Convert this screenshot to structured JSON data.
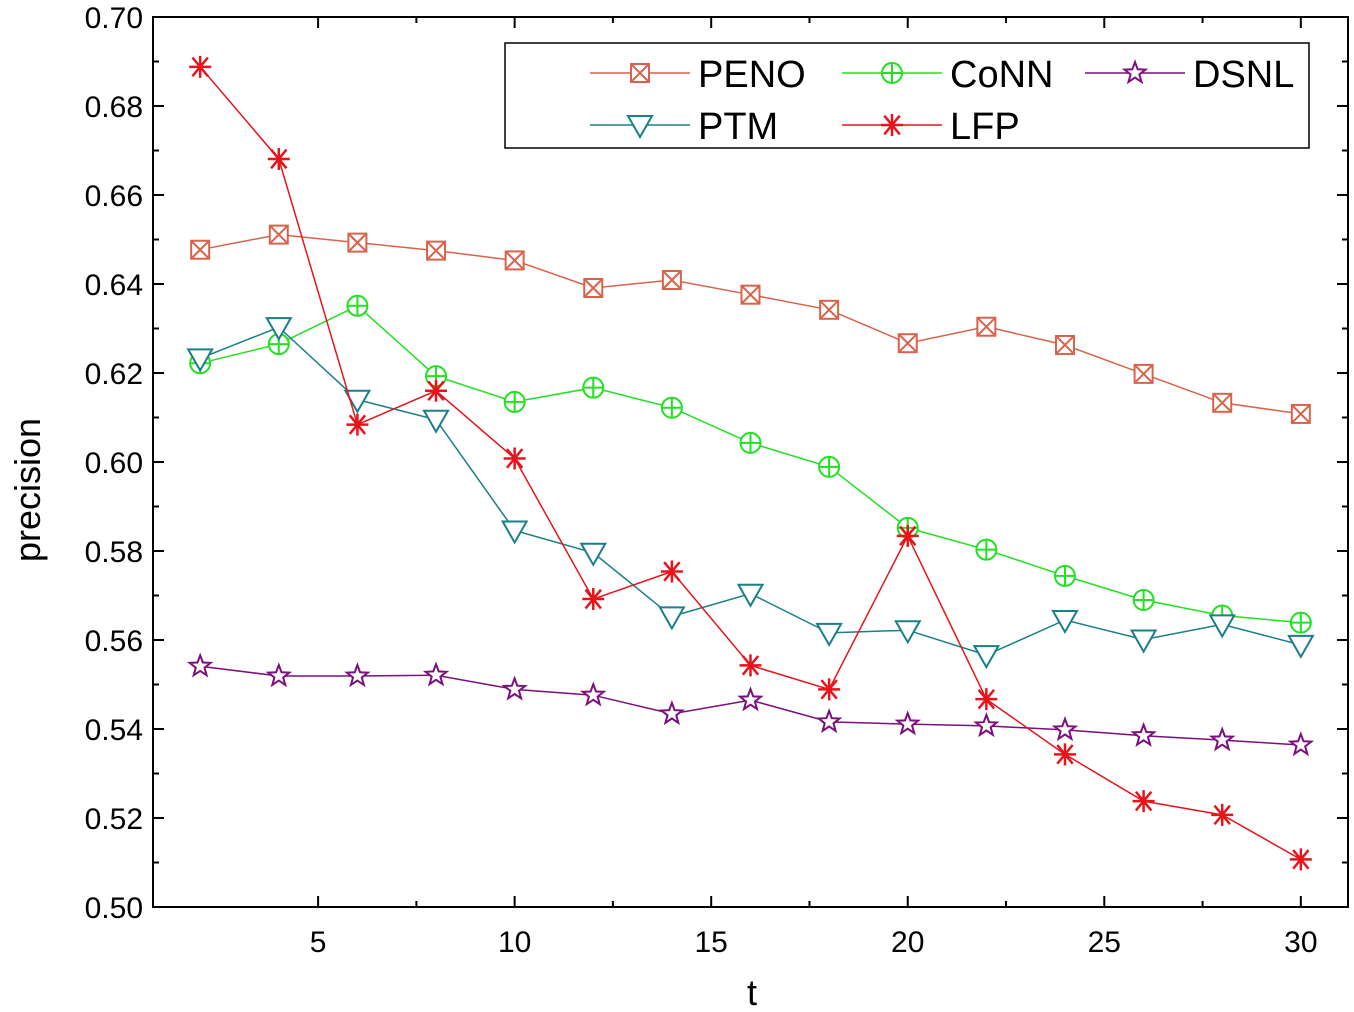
{
  "chart_data": {
    "type": "line",
    "title": "",
    "xlabel": "t",
    "ylabel": "precision",
    "xlim": [
      0.8,
      31.2
    ],
    "ylim": [
      0.5,
      0.7
    ],
    "xticks": [
      5,
      10,
      15,
      20,
      25,
      30
    ],
    "xticks_minor": [
      7.5,
      12.5,
      17.5,
      22.5,
      27.5
    ],
    "yticks": [
      0.5,
      0.52,
      0.54,
      0.56,
      0.58,
      0.6,
      0.62,
      0.64,
      0.66,
      0.68,
      0.7
    ],
    "yticks_minor": [
      0.51,
      0.53,
      0.55,
      0.57,
      0.59,
      0.61,
      0.63,
      0.65,
      0.67,
      0.69
    ],
    "xtick_labels": [
      "5",
      "10",
      "15",
      "20",
      "25",
      "30"
    ],
    "ytick_labels": [
      "0.50",
      "0.52",
      "0.54",
      "0.56",
      "0.58",
      "0.60",
      "0.62",
      "0.64",
      "0.66",
      "0.68",
      "0.70"
    ],
    "grid": false,
    "legend_position": "top-right",
    "x": [
      2,
      4,
      6,
      8,
      10,
      12,
      14,
      16,
      18,
      20,
      22,
      24,
      26,
      28,
      30
    ],
    "series": [
      {
        "name": "PENO",
        "color": "#d9634a",
        "marker": "square-x",
        "values": [
          0.6477,
          0.6511,
          0.6493,
          0.6475,
          0.6453,
          0.6391,
          0.6409,
          0.6376,
          0.6342,
          0.6267,
          0.6304,
          0.6263,
          0.6198,
          0.6133,
          0.6108
        ]
      },
      {
        "name": "CoNN",
        "color": "#22e022",
        "marker": "circle-plus",
        "values": [
          0.6222,
          0.6265,
          0.6351,
          0.6193,
          0.6135,
          0.6167,
          0.6122,
          0.6043,
          0.5989,
          0.5852,
          0.5803,
          0.5744,
          0.569,
          0.5655,
          0.5639
        ]
      },
      {
        "name": "DSNL",
        "color": "#7b0f7b",
        "marker": "star",
        "values": [
          0.5541,
          0.5519,
          0.5519,
          0.5521,
          0.5489,
          0.5476,
          0.5434,
          0.5465,
          0.5416,
          0.5411,
          0.5407,
          0.5398,
          0.5385,
          0.5375,
          0.5364
        ]
      },
      {
        "name": "PTM",
        "color": "#1a7f86",
        "marker": "triangle-down",
        "values": [
          0.6233,
          0.6303,
          0.614,
          0.6095,
          0.5846,
          0.5796,
          0.5653,
          0.5704,
          0.5616,
          0.5622,
          0.5566,
          0.5645,
          0.5601,
          0.5635,
          0.5589
        ]
      },
      {
        "name": "LFP",
        "color": "#e8141b",
        "marker": "asterisk",
        "values": [
          0.6888,
          0.6681,
          0.6084,
          0.616,
          0.6008,
          0.5692,
          0.5754,
          0.5543,
          0.5489,
          0.5834,
          0.5467,
          0.5343,
          0.5238,
          0.5207,
          0.5107
        ]
      }
    ]
  }
}
